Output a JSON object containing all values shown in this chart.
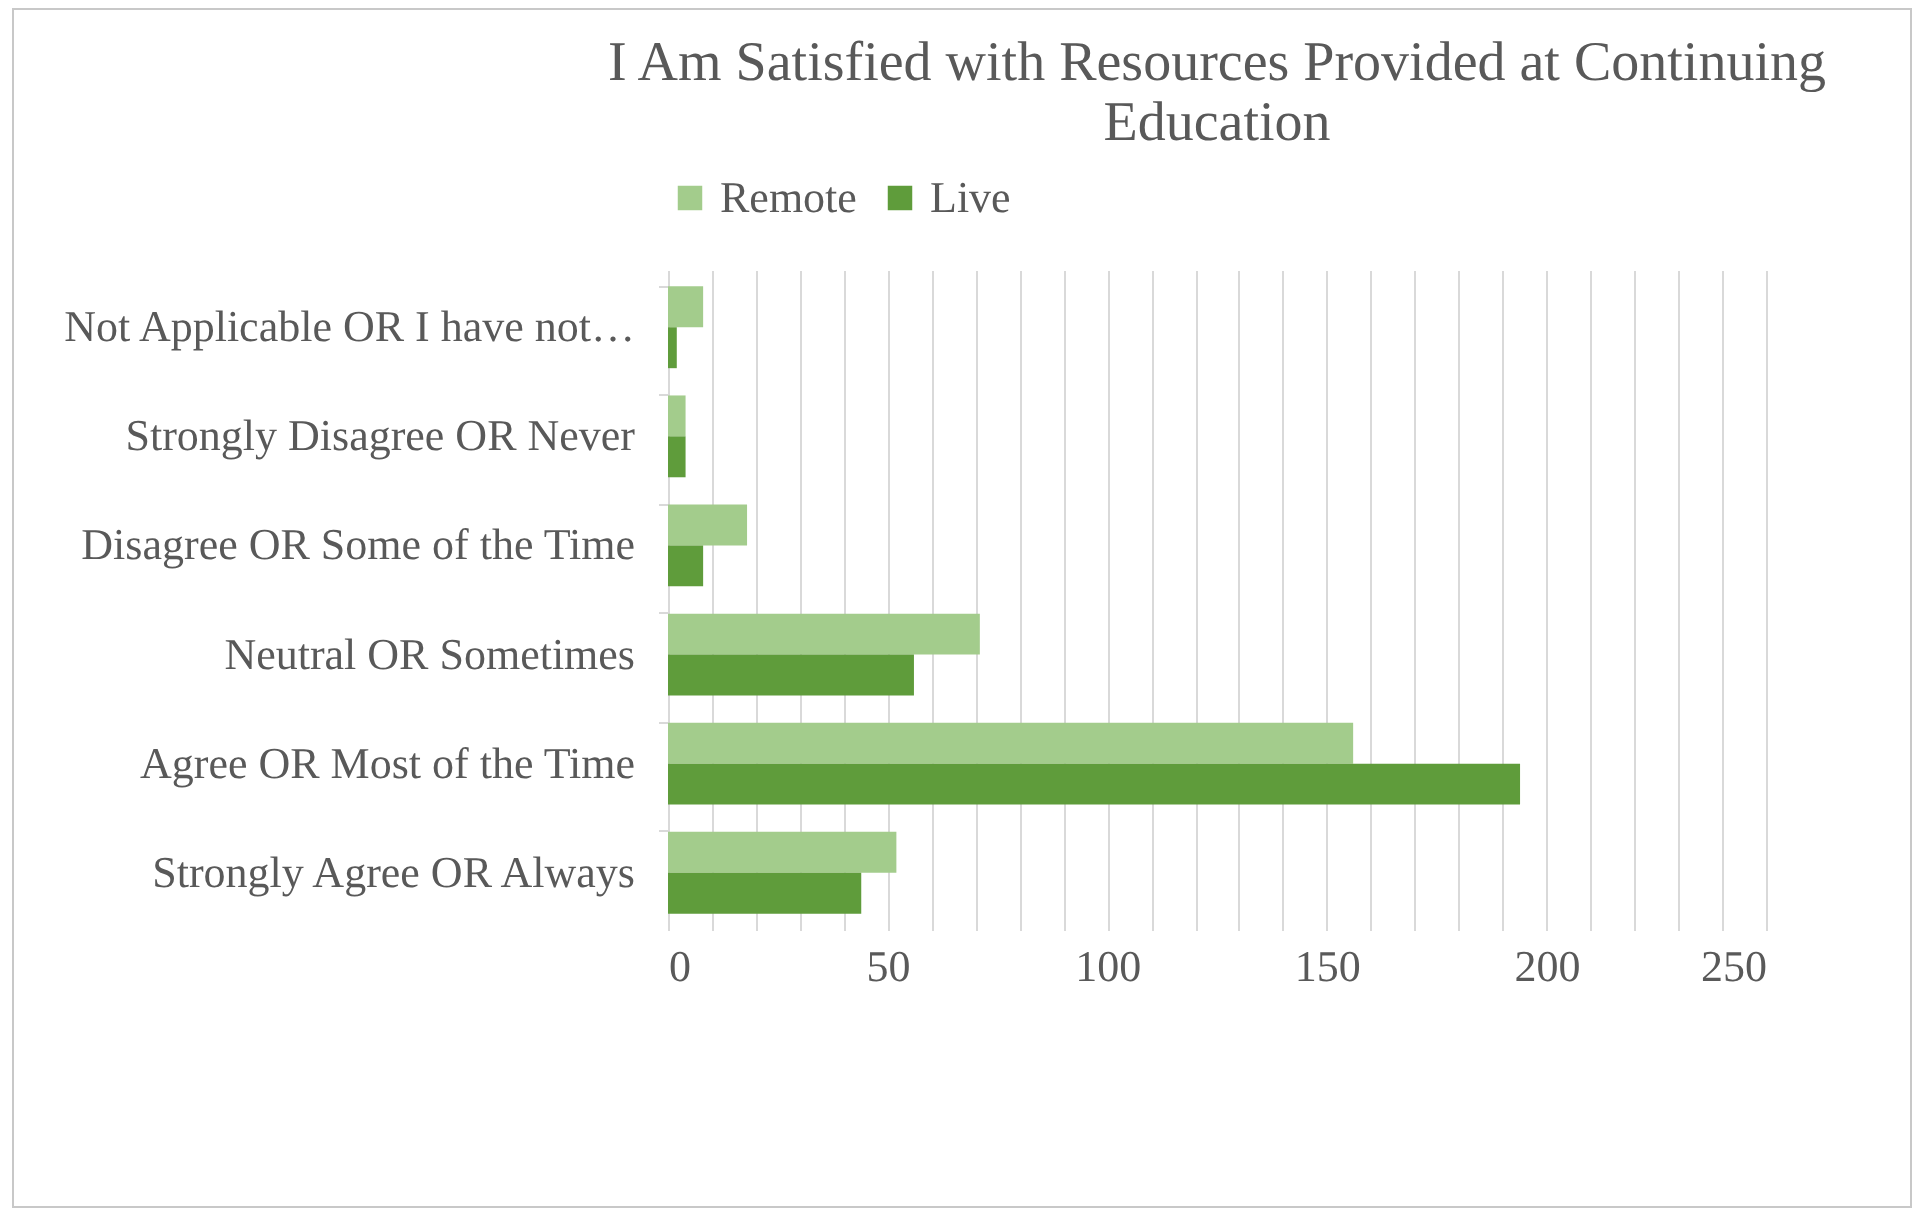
{
  "chart_data": {
    "type": "bar",
    "orientation": "horizontal",
    "title": "I Am Satisfied with Resources Provided at Continuing Education",
    "categories": [
      "Not Applicable OR I have not…",
      "Strongly Disagree OR Never",
      "Disagree OR Some of the Time",
      "Neutral OR Sometimes",
      "Agree OR Most of the Time",
      "Strongly Agree OR Always"
    ],
    "series": [
      {
        "name": "Remote",
        "color": "#a3cc8c",
        "values": [
          8,
          4,
          18,
          71,
          156,
          52
        ]
      },
      {
        "name": "Live",
        "color": "#5f9c3b",
        "values": [
          2,
          4,
          8,
          56,
          194,
          44
        ]
      }
    ],
    "xlim": [
      0,
      250
    ],
    "xticks": [
      0,
      {
        "value": 10,
        "label": null
      },
      {
        "value": 20,
        "label": null
      },
      {
        "value": 30,
        "label": null
      },
      {
        "value": 40,
        "label": null
      },
      50,
      {
        "value": 60,
        "label": null
      },
      {
        "value": 70,
        "label": null
      },
      {
        "value": 80,
        "label": null
      },
      {
        "value": 90,
        "label": null
      },
      100,
      {
        "value": 110,
        "label": null
      },
      {
        "value": 120,
        "label": null
      },
      {
        "value": 130,
        "label": null
      },
      {
        "value": 140,
        "label": null
      },
      150,
      {
        "value": 160,
        "label": null
      },
      {
        "value": 170,
        "label": null
      },
      {
        "value": 180,
        "label": null
      },
      {
        "value": 190,
        "label": null
      },
      200,
      {
        "value": 210,
        "label": null
      },
      {
        "value": 220,
        "label": null
      },
      {
        "value": 230,
        "label": null
      },
      {
        "value": 240,
        "label": null
      },
      250
    ],
    "grid": "x",
    "legend": "top"
  }
}
